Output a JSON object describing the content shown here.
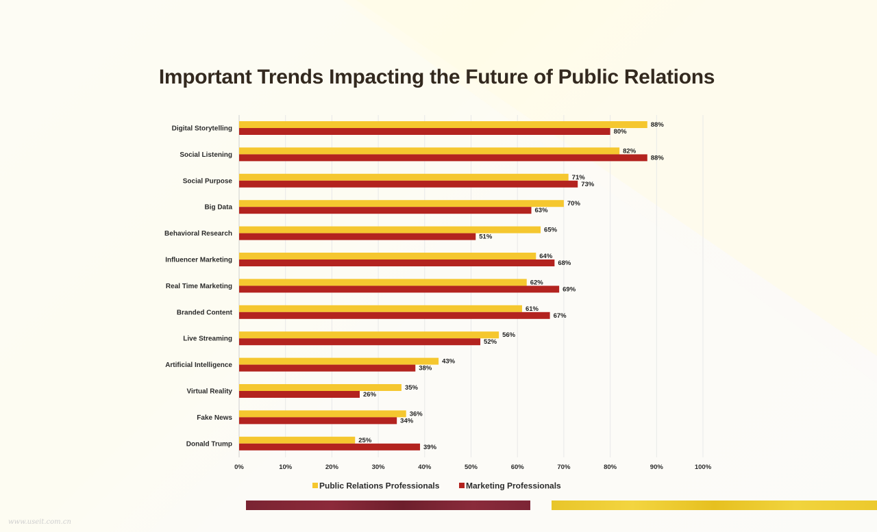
{
  "watermark": "www.useit.com.cn",
  "colors": {
    "pr": "#f5c72f",
    "marketing": "#b3231f",
    "grid": "#e8e8e8",
    "axis": "#cfcfcf"
  },
  "chart_data": {
    "type": "bar",
    "orientation": "horizontal",
    "title": "Important Trends Impacting the Future of Public Relations",
    "categories": [
      "Digital Storytelling",
      "Social Listening",
      "Social Purpose",
      "Big Data",
      "Behavioral Research",
      "Influencer Marketing",
      "Real Time Marketing",
      "Branded Content",
      "Live Streaming",
      "Artificial Intelligence",
      "Virtual Reality",
      "Fake News",
      "Donald Trump"
    ],
    "series": [
      {
        "name": "Public Relations Professionals",
        "values": [
          88,
          82,
          71,
          70,
          65,
          64,
          62,
          61,
          56,
          43,
          35,
          36,
          25
        ],
        "labels": [
          "88%",
          "82%",
          "71%",
          "70%",
          "65%",
          "64%",
          "62%",
          "61%",
          "56%",
          "43%",
          "35%",
          "36%",
          "25%"
        ]
      },
      {
        "name": "Marketing Professionals",
        "values": [
          80,
          88,
          73,
          63,
          51,
          68,
          69,
          67,
          52,
          38,
          26,
          34,
          39
        ],
        "labels": [
          "80%",
          "88%",
          "73%",
          "63%",
          "51%",
          "68%",
          "69%",
          "67%",
          "52%",
          "38%",
          "26%",
          "34%",
          "39%"
        ]
      }
    ],
    "xlim": [
      0,
      100
    ],
    "xticks": [
      "0%",
      "10%",
      "20%",
      "30%",
      "40%",
      "50%",
      "60%",
      "70%",
      "80%",
      "90%",
      "100%"
    ],
    "grid": true,
    "legend_position": "bottom"
  }
}
